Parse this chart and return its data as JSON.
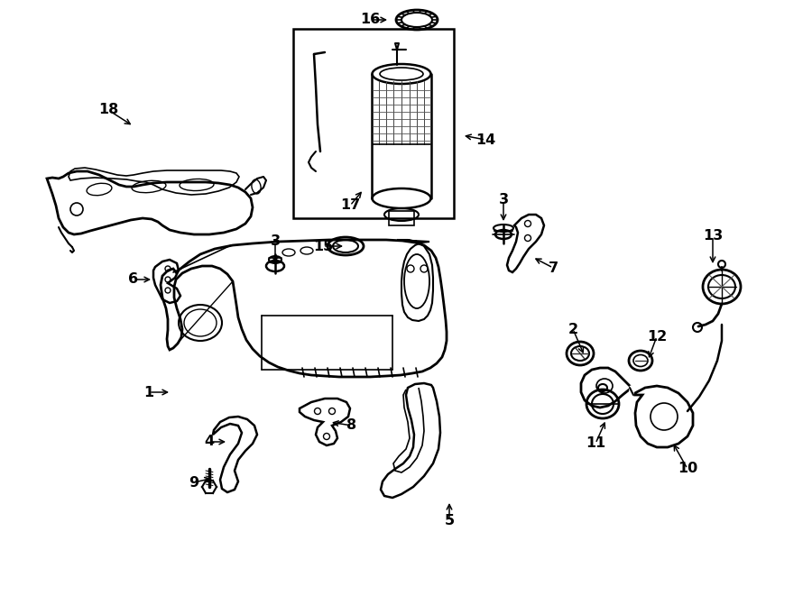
{
  "bg": "#ffffff",
  "lc": "#000000",
  "figsize": [
    9.0,
    6.61
  ],
  "dpi": 100,
  "labels": {
    "1": [
      190,
      435,
      165,
      435
    ],
    "2": [
      648,
      395,
      635,
      365
    ],
    "3a": [
      305,
      295,
      305,
      268
    ],
    "3b": [
      558,
      248,
      558,
      222
    ],
    "4": [
      253,
      490,
      232,
      490
    ],
    "5": [
      498,
      555,
      498,
      578
    ],
    "6": [
      170,
      310,
      148,
      310
    ],
    "7": [
      590,
      285,
      613,
      297
    ],
    "8": [
      365,
      468,
      390,
      472
    ],
    "9": [
      237,
      530,
      215,
      535
    ],
    "10": [
      745,
      490,
      762,
      520
    ],
    "11": [
      672,
      465,
      660,
      492
    ],
    "12": [
      718,
      400,
      728,
      373
    ],
    "13": [
      790,
      295,
      790,
      262
    ],
    "14": [
      512,
      150,
      538,
      155
    ],
    "15": [
      383,
      273,
      358,
      273
    ],
    "16": [
      432,
      22,
      410,
      22
    ],
    "17": [
      403,
      210,
      388,
      228
    ],
    "18": [
      148,
      140,
      120,
      122
    ]
  }
}
